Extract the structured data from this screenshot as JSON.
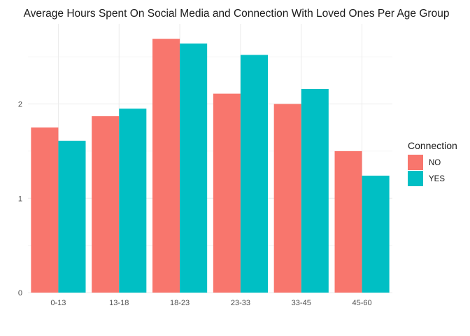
{
  "chart_data": {
    "type": "bar",
    "title": "Average Hours Spent On Social Media and Connection With Loved Ones Per Age Group",
    "xlabel": "",
    "ylabel": "",
    "categories": [
      "0-13",
      "13-18",
      "18-23",
      "23-33",
      "33-45",
      "45-60"
    ],
    "series": [
      {
        "name": "NO",
        "color": "#F8766D",
        "values": [
          1.75,
          1.87,
          2.69,
          2.11,
          2.0,
          1.5
        ]
      },
      {
        "name": "YES",
        "color": "#00BFC4",
        "values": [
          1.61,
          1.95,
          2.64,
          2.52,
          2.16,
          1.24
        ]
      }
    ],
    "ylim": [
      0,
      2.85
    ],
    "yticks": [
      "0",
      "1",
      "2"
    ],
    "ytick_values": [
      0,
      1,
      2
    ],
    "grid": true,
    "legend": {
      "title": "Connection",
      "position": "right",
      "entries": [
        "NO",
        "YES"
      ]
    }
  }
}
